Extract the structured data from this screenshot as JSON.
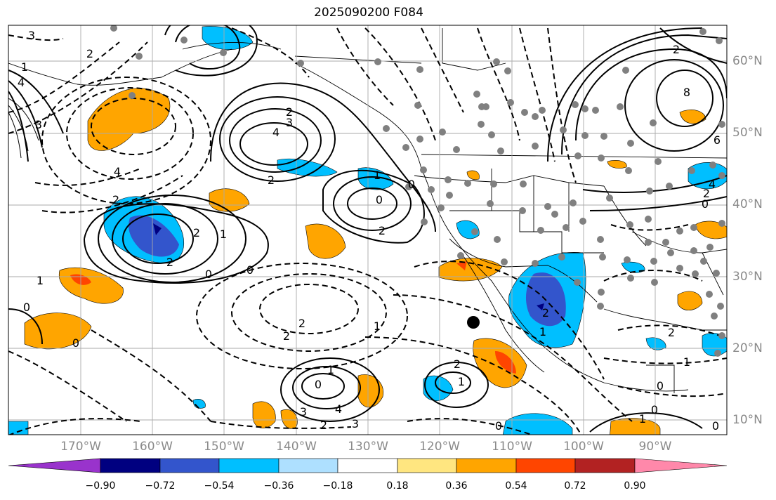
{
  "title": "2025090200 F084",
  "lat_labels": [
    "60°N",
    "50°N",
    "40°N",
    "30°N",
    "20°N",
    "10°N"
  ],
  "lon_labels": [
    "170°W",
    "160°W",
    "150°W",
    "140°W",
    "130°W",
    "120°W",
    "110°W",
    "100°W",
    "90°W"
  ],
  "colorbar": {
    "ticks": [
      "−0.90",
      "−0.72",
      "−0.54",
      "−0.36",
      "−0.18",
      "0.18",
      "0.36",
      "0.54",
      "0.72",
      "0.90"
    ],
    "colors": [
      "#9933cc",
      "#000080",
      "#3355cc",
      "#00bfff",
      "#aee0ff",
      "#ffffff",
      "#ffe680",
      "#ffa500",
      "#ff4500",
      "#b22222",
      "#ff88aa"
    ]
  },
  "contour_labels": [
    {
      "text": "3"
    },
    {
      "text": "2"
    },
    {
      "text": "1"
    },
    {
      "text": "4"
    },
    {
      "text": "3"
    },
    {
      "text": "4"
    },
    {
      "text": "2"
    },
    {
      "text": "4"
    },
    {
      "text": "3"
    },
    {
      "text": "2"
    },
    {
      "text": "2"
    },
    {
      "text": "1"
    },
    {
      "text": "2"
    },
    {
      "text": "0"
    },
    {
      "text": "0"
    },
    {
      "text": "1"
    },
    {
      "text": "0"
    },
    {
      "text": "0"
    },
    {
      "text": "2"
    },
    {
      "text": "2"
    },
    {
      "text": "1"
    },
    {
      "text": "2"
    },
    {
      "text": "0"
    },
    {
      "text": "1"
    },
    {
      "text": "0"
    },
    {
      "text": "2"
    },
    {
      "text": "1"
    },
    {
      "text": "0"
    },
    {
      "text": "4"
    },
    {
      "text": "3"
    },
    {
      "text": "2"
    },
    {
      "text": "3"
    },
    {
      "text": "2"
    },
    {
      "text": "1"
    },
    {
      "text": "0"
    },
    {
      "text": "8"
    },
    {
      "text": "2"
    },
    {
      "text": "6"
    },
    {
      "text": "4"
    },
    {
      "text": "2"
    },
    {
      "text": "0"
    },
    {
      "text": "2"
    },
    {
      "text": "1"
    },
    {
      "text": "0"
    },
    {
      "text": "1"
    },
    {
      "text": "0"
    },
    {
      "text": "0"
    },
    {
      "text": "1"
    },
    {
      "text": "2"
    }
  ]
}
